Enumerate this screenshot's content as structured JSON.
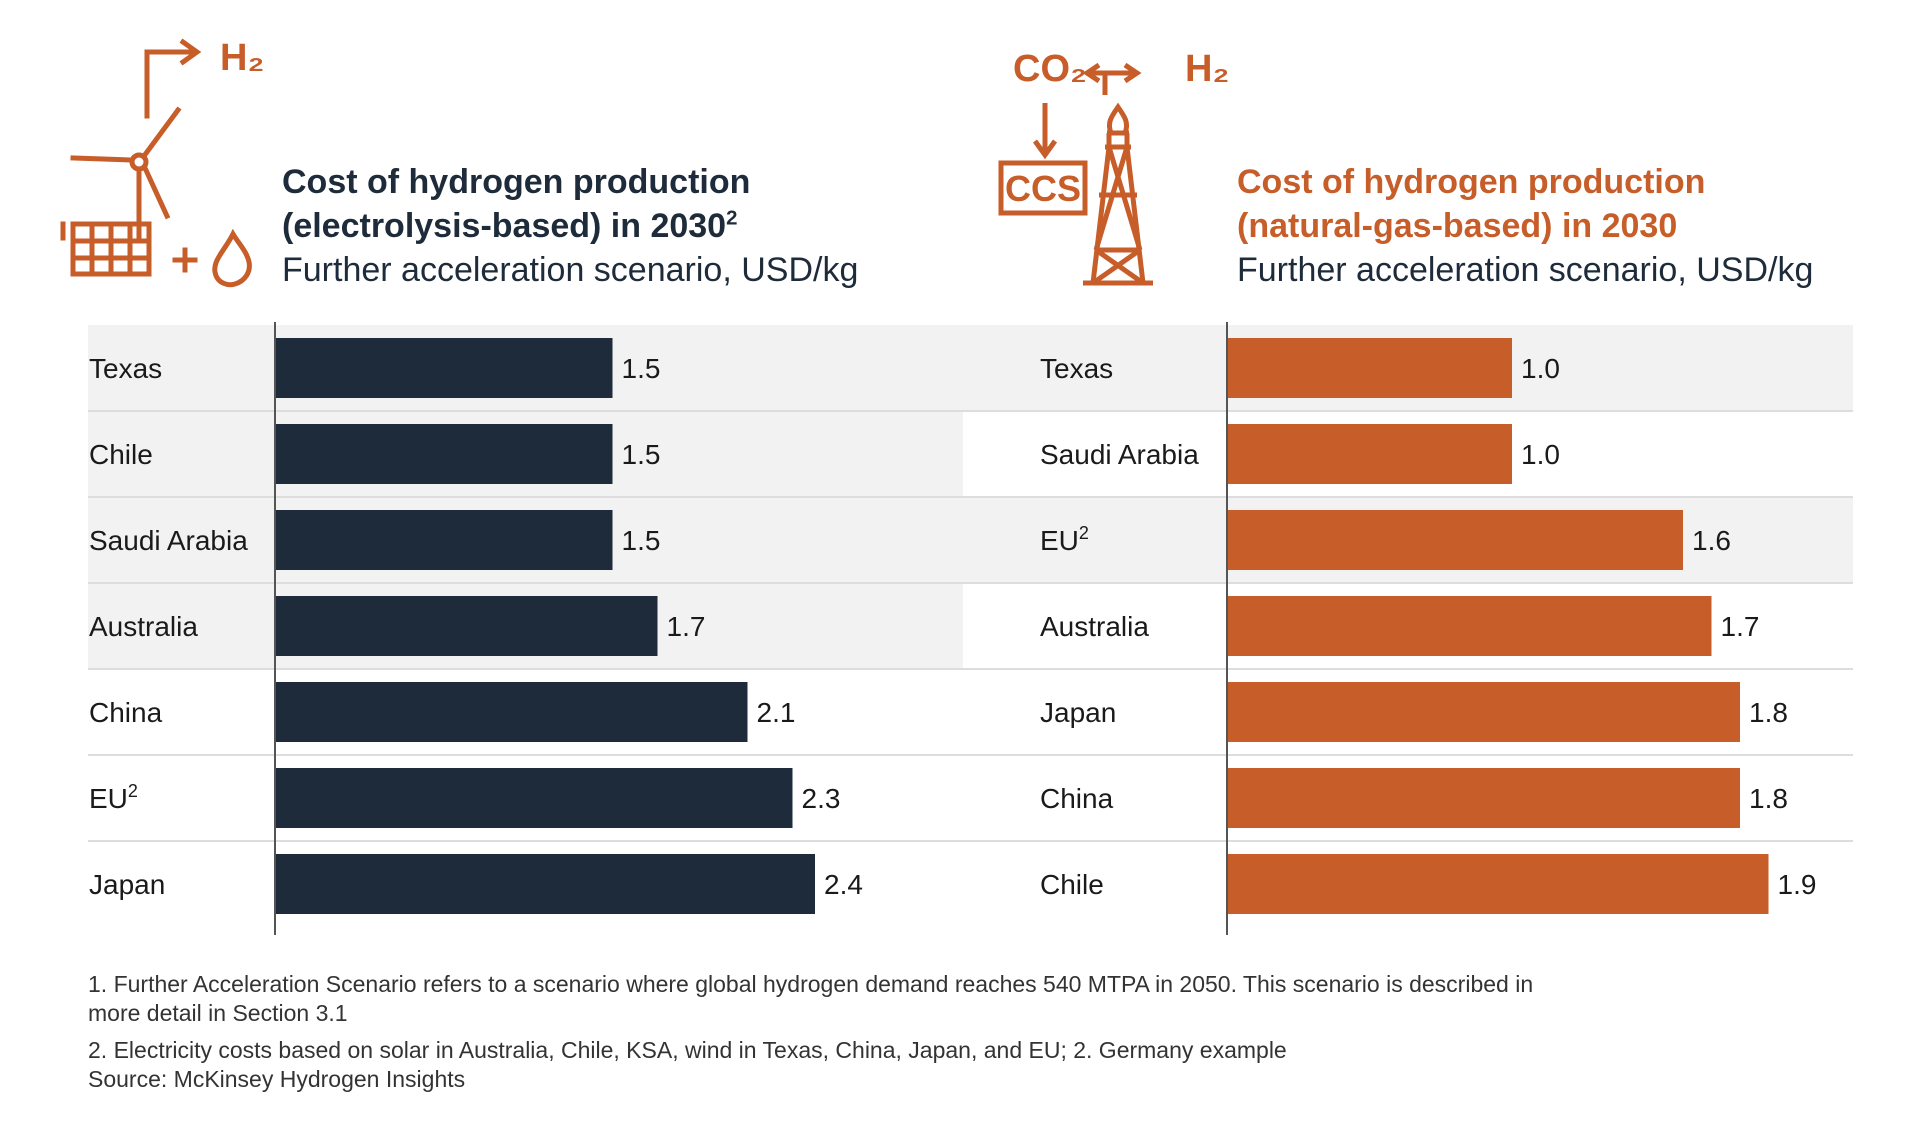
{
  "colors": {
    "dark": "#1e2b3a",
    "orange": "#c75d28",
    "band": "#f2f2f2",
    "divider": "#dddddd"
  },
  "icons": {
    "left": {
      "name": "wind-solar-water-electrolysis-icon",
      "label": "H₂"
    },
    "right": {
      "name": "natural-gas-ccs-icon",
      "label_co2": "CO₂",
      "label_h2": "H₂",
      "label_ccs": "CCS"
    }
  },
  "chart_data": [
    {
      "type": "bar",
      "orientation": "horizontal",
      "title_line1": "Cost of hydrogen production",
      "title_line2": "(electrolysis-based) in 2030",
      "title_sup": "2",
      "subtitle": "Further acceleration scenario, USD/kg",
      "categories": [
        "Texas",
        "Chile",
        "Saudi Arabia",
        "Australia",
        "China",
        "EU",
        "Japan"
      ],
      "category_sups": [
        "",
        "",
        "",
        "",
        "",
        "2",
        ""
      ],
      "values": [
        1.5,
        1.5,
        1.5,
        1.7,
        2.1,
        2.3,
        2.4
      ],
      "value_labels": [
        "1.5",
        "1.5",
        "1.5",
        "1.7",
        "2.1",
        "2.3",
        "2.4"
      ],
      "shaded_rows": [
        0,
        1,
        2,
        3
      ],
      "xlim": [
        0,
        3.2
      ],
      "color": "#1e2b3a"
    },
    {
      "type": "bar",
      "orientation": "horizontal",
      "title_line1": "Cost of hydrogen production",
      "title_line2": "(natural-gas-based) in 2030",
      "title_sup": "",
      "subtitle": "Further acceleration scenario, USD/kg",
      "categories": [
        "Texas",
        "Saudi Arabia",
        "EU",
        "Australia",
        "Japan",
        "China",
        "Chile"
      ],
      "category_sups": [
        "",
        "",
        "2",
        "",
        "",
        "",
        ""
      ],
      "values": [
        1.0,
        1.0,
        1.6,
        1.7,
        1.8,
        1.8,
        1.9
      ],
      "value_labels": [
        "1.0",
        "1.0",
        "1.6",
        "1.7",
        "1.8",
        "1.8",
        "1.9"
      ],
      "shaded_rows": [
        0,
        2
      ],
      "xlim": [
        0,
        3.2
      ],
      "color": "#c75d28"
    }
  ],
  "footnotes": {
    "note1_line1": "1. Further Acceleration Scenario refers to a scenario where global hydrogen demand reaches 540 MTPA in 2050. This scenario is described in",
    "note1_line2": "more detail in Section 3.1",
    "note2": "2. Electricity costs based on solar in Australia, Chile, KSA, wind in Texas, China, Japan, and EU; 2. Germany example",
    "source": "Source: McKinsey Hydrogen Insights"
  }
}
